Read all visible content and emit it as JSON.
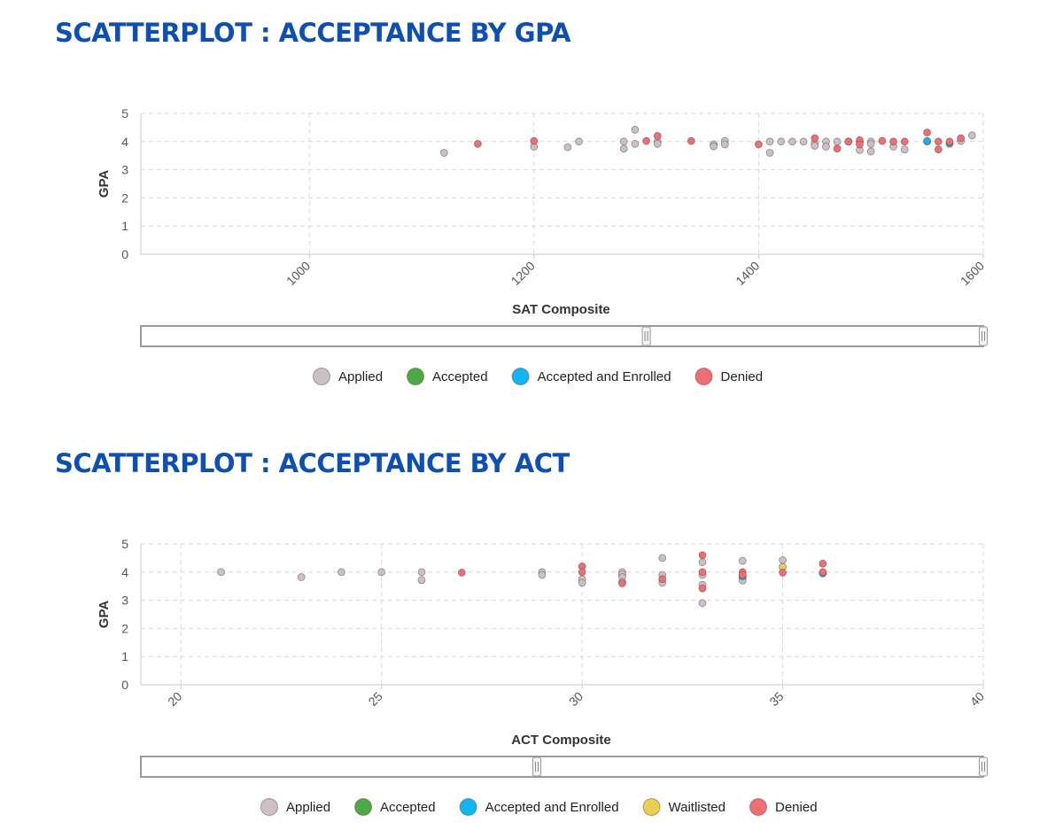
{
  "chart_data": [
    {
      "type": "scatter",
      "title": "SCATTERPLOT : ACCEPTANCE BY GPA",
      "xlabel": "SAT Composite",
      "ylabel": "GPA",
      "xlim": [
        850,
        1600
      ],
      "ylim": [
        0,
        5
      ],
      "xticks": [
        1000,
        1200,
        1400,
        1600
      ],
      "xtick_labels": [
        "1000",
        "1200",
        "1400",
        "1600"
      ],
      "yticks": [
        0,
        1,
        2,
        3,
        4,
        5
      ],
      "ytick_labels": [
        "0",
        "1",
        "2",
        "3",
        "4",
        "5"
      ],
      "grid": true,
      "zoom_range": [
        0.6,
        1.0
      ],
      "legend": [
        "Applied",
        "Accepted",
        "Accepted and Enrolled",
        "Denied"
      ],
      "series": [
        {
          "name": "Applied",
          "color": "#c9c1c4",
          "points": [
            [
              1120,
              3.6
            ],
            [
              1200,
              3.82
            ],
            [
              1230,
              3.8
            ],
            [
              1240,
              4.0
            ],
            [
              1280,
              4.0
            ],
            [
              1280,
              3.75
            ],
            [
              1290,
              4.42
            ],
            [
              1290,
              3.92
            ],
            [
              1310,
              4.0
            ],
            [
              1310,
              3.92
            ],
            [
              1360,
              3.9
            ],
            [
              1360,
              3.83
            ],
            [
              1370,
              4.02
            ],
            [
              1370,
              3.9
            ],
            [
              1410,
              4.0
            ],
            [
              1410,
              3.6
            ],
            [
              1420,
              4.0
            ],
            [
              1430,
              4.0
            ],
            [
              1440,
              4.0
            ],
            [
              1450,
              3.95
            ],
            [
              1450,
              3.85
            ],
            [
              1460,
              4.0
            ],
            [
              1460,
              3.82
            ],
            [
              1470,
              4.0
            ],
            [
              1480,
              4.0
            ],
            [
              1490,
              4.0
            ],
            [
              1490,
              3.7
            ],
            [
              1500,
              4.0
            ],
            [
              1500,
              3.92
            ],
            [
              1500,
              3.65
            ],
            [
              1520,
              3.82
            ],
            [
              1530,
              3.72
            ],
            [
              1550,
              4.0
            ],
            [
              1570,
              3.92
            ],
            [
              1580,
              4.02
            ],
            [
              1590,
              4.22
            ]
          ]
        },
        {
          "name": "Accepted",
          "color": "#4ea843",
          "points": []
        },
        {
          "name": "Accepted and Enrolled",
          "color": "#12b5ef",
          "points": [
            [
              1550,
              4.02
            ],
            [
              1570,
              3.95
            ]
          ]
        },
        {
          "name": "Denied",
          "color": "#ee6f73",
          "points": [
            [
              1150,
              3.92
            ],
            [
              1200,
              4.02
            ],
            [
              1300,
              4.02
            ],
            [
              1310,
              4.2
            ],
            [
              1340,
              4.02
            ],
            [
              1400,
              3.9
            ],
            [
              1450,
              4.12
            ],
            [
              1470,
              3.75
            ],
            [
              1480,
              4.0
            ],
            [
              1490,
              4.05
            ],
            [
              1490,
              3.9
            ],
            [
              1510,
              4.02
            ],
            [
              1520,
              4.0
            ],
            [
              1530,
              4.0
            ],
            [
              1550,
              4.32
            ],
            [
              1560,
              4.0
            ],
            [
              1560,
              3.72
            ],
            [
              1570,
              4.0
            ],
            [
              1580,
              4.12
            ]
          ]
        }
      ]
    },
    {
      "type": "scatter",
      "title": "SCATTERPLOT : ACCEPTANCE BY ACT",
      "xlabel": "ACT Composite",
      "ylabel": "GPA",
      "xlim": [
        19,
        40
      ],
      "ylim": [
        0,
        5
      ],
      "xticks": [
        20,
        25,
        30,
        35,
        40
      ],
      "xtick_labels": [
        "20",
        "25",
        "30",
        "35",
        "40"
      ],
      "yticks": [
        0,
        1,
        2,
        3,
        4,
        5
      ],
      "ytick_labels": [
        "0",
        "1",
        "2",
        "3",
        "4",
        "5"
      ],
      "grid": true,
      "zoom_range": [
        0.47,
        1.0
      ],
      "legend": [
        "Applied",
        "Accepted",
        "Accepted and Enrolled",
        "Waitlisted",
        "Denied"
      ],
      "series": [
        {
          "name": "Applied",
          "color": "#c9c1c4",
          "points": [
            [
              21,
              4.0
            ],
            [
              23,
              3.82
            ],
            [
              24,
              4.0
            ],
            [
              25,
              4.0
            ],
            [
              26,
              4.0
            ],
            [
              26,
              3.72
            ],
            [
              29,
              4.0
            ],
            [
              29,
              3.9
            ],
            [
              30,
              3.75
            ],
            [
              30,
              3.62
            ],
            [
              31,
              4.0
            ],
            [
              31,
              3.92
            ],
            [
              31,
              3.82
            ],
            [
              31,
              3.65
            ],
            [
              32,
              4.5
            ],
            [
              32,
              3.9
            ],
            [
              32,
              3.62
            ],
            [
              33,
              4.35
            ],
            [
              33,
              3.9
            ],
            [
              33,
              3.55
            ],
            [
              33,
              2.9
            ],
            [
              34,
              4.4
            ],
            [
              34,
              3.8
            ],
            [
              34,
              3.7
            ],
            [
              35,
              4.42
            ]
          ]
        },
        {
          "name": "Accepted",
          "color": "#4ea843",
          "points": []
        },
        {
          "name": "Accepted and Enrolled",
          "color": "#12b5ef",
          "points": [
            [
              34,
              3.85
            ],
            [
              36,
              3.95
            ]
          ]
        },
        {
          "name": "Waitlisted",
          "color": "#e8cf4f",
          "points": [
            [
              35,
              4.18
            ]
          ]
        },
        {
          "name": "Denied",
          "color": "#ee6f73",
          "points": [
            [
              27,
              3.98
            ],
            [
              30,
              4.2
            ],
            [
              30,
              4.0
            ],
            [
              31,
              3.6
            ],
            [
              32,
              3.75
            ],
            [
              33,
              4.6
            ],
            [
              33,
              4.0
            ],
            [
              33,
              3.42
            ],
            [
              34,
              4.0
            ],
            [
              34,
              3.9
            ],
            [
              35,
              3.98
            ],
            [
              36,
              4.3
            ],
            [
              36,
              4.0
            ]
          ]
        }
      ]
    }
  ]
}
